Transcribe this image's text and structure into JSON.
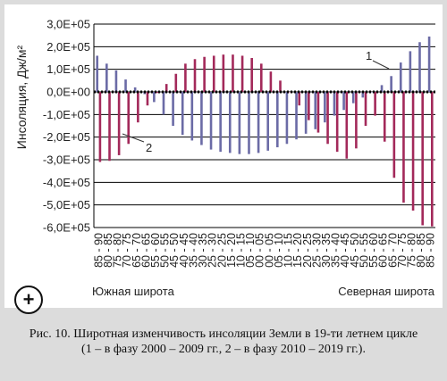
{
  "chart_data": {
    "type": "bar",
    "ylabel": "Инсоляция, Дж/м²",
    "ylim": [
      -600000,
      300000
    ],
    "ytick_step": 100000,
    "ytick_labels": [
      "3,0E+05",
      "2,0E+05",
      "1,0E+05",
      "0,0E+00",
      "-1,0E+05",
      "-2,0E+05",
      "-3,0E+05",
      "-4,0E+05",
      "-5,0E+05",
      "-6,0E+05"
    ],
    "categories": [
      "85 - 90",
      "80 - 85",
      "75 - 80",
      "70 - 75",
      "65 - 70",
      "60 - 65",
      "55 - 60",
      "50 - 55",
      "45 - 50",
      "40 - 45",
      "35 - 40",
      "30 - 35",
      "25 - 30",
      "20 - 25",
      "15 - 20",
      "10 - 15",
      "05 - 10",
      "00 - 05",
      "00 - 05",
      "05 - 10",
      "10 - 15",
      "15 - 20",
      "20 - 25",
      "25 - 30",
      "30 - 35",
      "35 - 40",
      "40 - 45",
      "45 - 50",
      "50 - 55",
      "55 - 60",
      "60 - 65",
      "65 - 70",
      "70 - 75",
      "75 - 80",
      "80 - 85",
      "85 - 90"
    ],
    "series": [
      {
        "name": "1",
        "values": [
          160000,
          125000,
          95000,
          55000,
          20000,
          -10000,
          -45000,
          -100000,
          -150000,
          -190000,
          -215000,
          -235000,
          -255000,
          -265000,
          -270000,
          -275000,
          -275000,
          -270000,
          -260000,
          -245000,
          -230000,
          -210000,
          -185000,
          -165000,
          -135000,
          -105000,
          -80000,
          -50000,
          -25000,
          0,
          30000,
          70000,
          130000,
          180000,
          220000,
          245000
        ]
      },
      {
        "name": "2",
        "values": [
          -310000,
          -305000,
          -280000,
          -230000,
          -135000,
          -60000,
          -5000,
          35000,
          80000,
          125000,
          145000,
          155000,
          160000,
          165000,
          165000,
          160000,
          150000,
          125000,
          90000,
          50000,
          0,
          -60000,
          -125000,
          -180000,
          -230000,
          -265000,
          -295000,
          -250000,
          -150000,
          -105000,
          -220000,
          -380000,
          -490000,
          -525000,
          -590000,
          -595000
        ]
      }
    ],
    "colors": {
      "series1": "#6b6ba6",
      "series2": "#a3295a"
    },
    "callouts": [
      "1",
      "2"
    ],
    "region_labels": {
      "south": "Южная широта",
      "north": "Северная широта"
    },
    "grid": true
  },
  "caption": {
    "line1": "Рис. 10. Широтная изменчивость инсоляции Земли в 19-ти летнем цикле",
    "line2": "(1 – в фазу 2000 – 2009 гг., 2 – в фазу 2010 – 2019 гг.)."
  },
  "zoom_button": {
    "label": "+"
  }
}
